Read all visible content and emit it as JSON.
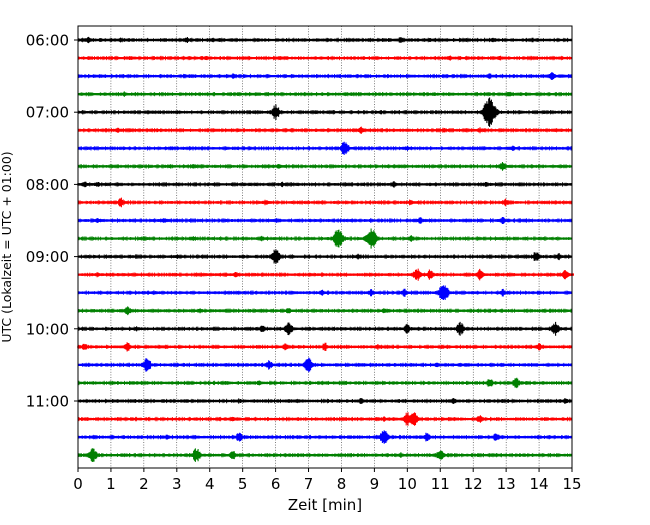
{
  "chart_data": {
    "type": "line",
    "title": "",
    "xlabel": "Zeit  [min]",
    "ylabel": "UTC (Lokalzeit = UTC + 01:00)",
    "xlim": [
      0,
      15
    ],
    "x_ticks": [
      0,
      1,
      2,
      3,
      4,
      5,
      6,
      7,
      8,
      9,
      10,
      11,
      12,
      13,
      14,
      15
    ],
    "x_grid": true,
    "trace_minutes": 15,
    "y_ticks": [
      "06:00",
      "07:00",
      "08:00",
      "09:00",
      "10:00",
      "11:00"
    ],
    "traces": [
      {
        "start": "06:00",
        "color": "#000000",
        "events": [
          [
            0.3,
            0.35
          ],
          [
            1.3,
            0.25
          ],
          [
            3.3,
            0.35
          ],
          [
            4.1,
            0.3
          ],
          [
            9.8,
            0.4
          ],
          [
            10.7,
            0.25
          ],
          [
            12.6,
            0.3
          ],
          [
            13.8,
            0.25
          ]
        ]
      },
      {
        "start": "06:15",
        "color": "#ff0000",
        "events": [
          [
            1.6,
            0.25
          ],
          [
            3.9,
            0.25
          ],
          [
            11.3,
            0.3
          ],
          [
            12.8,
            0.3
          ]
        ]
      },
      {
        "start": "06:30",
        "color": "#0000ff",
        "events": [
          [
            3.4,
            0.25
          ],
          [
            4.7,
            0.3
          ],
          [
            12.5,
            0.3
          ],
          [
            14.4,
            0.4
          ]
        ]
      },
      {
        "start": "06:45",
        "color": "#008000",
        "events": [
          [
            1.4,
            0.3
          ],
          [
            10.8,
            0.25
          ],
          [
            13.1,
            0.35
          ]
        ]
      },
      {
        "start": "07:00",
        "color": "#000000",
        "events": [
          [
            6.0,
            0.8
          ],
          [
            12.5,
            1.5
          ],
          [
            3.0,
            0.2
          ],
          [
            9.2,
            0.25
          ]
        ]
      },
      {
        "start": "07:15",
        "color": "#ff0000",
        "events": [
          [
            1.2,
            0.3
          ],
          [
            2.4,
            0.25
          ],
          [
            8.6,
            0.45
          ],
          [
            11.1,
            0.3
          ],
          [
            12.2,
            0.3
          ]
        ]
      },
      {
        "start": "07:30",
        "color": "#0000ff",
        "events": [
          [
            2.8,
            0.25
          ],
          [
            8.1,
            0.8
          ],
          [
            10.0,
            0.3
          ],
          [
            13.2,
            0.3
          ]
        ]
      },
      {
        "start": "07:45",
        "color": "#008000",
        "events": [
          [
            2.8,
            0.25
          ],
          [
            3.5,
            0.25
          ],
          [
            6.1,
            0.3
          ],
          [
            12.9,
            0.5
          ]
        ]
      },
      {
        "start": "08:00",
        "color": "#000000",
        "events": [
          [
            0.2,
            0.4
          ],
          [
            0.6,
            0.35
          ],
          [
            6.2,
            0.3
          ],
          [
            9.6,
            0.35
          ],
          [
            12.4,
            0.35
          ]
        ]
      },
      {
        "start": "08:15",
        "color": "#ff0000",
        "events": [
          [
            1.3,
            0.5
          ],
          [
            5.7,
            0.3
          ],
          [
            10.1,
            0.35
          ],
          [
            13.0,
            0.4
          ]
        ]
      },
      {
        "start": "08:30",
        "color": "#0000ff",
        "events": [
          [
            0.6,
            0.3
          ],
          [
            2.6,
            0.3
          ],
          [
            6.0,
            0.3
          ],
          [
            10.4,
            0.4
          ],
          [
            12.9,
            0.4
          ]
        ]
      },
      {
        "start": "08:45",
        "color": "#008000",
        "events": [
          [
            2.0,
            0.3
          ],
          [
            3.5,
            0.3
          ],
          [
            5.6,
            0.3
          ],
          [
            7.9,
            1.0
          ],
          [
            8.9,
            1.1
          ],
          [
            10.1,
            0.35
          ]
        ]
      },
      {
        "start": "09:00",
        "color": "#000000",
        "events": [
          [
            6.0,
            0.8
          ],
          [
            8.5,
            0.3
          ],
          [
            13.9,
            0.55
          ],
          [
            14.6,
            0.4
          ],
          [
            3.0,
            0.25
          ]
        ]
      },
      {
        "start": "09:15",
        "color": "#ff0000",
        "events": [
          [
            0.6,
            0.3
          ],
          [
            4.8,
            0.3
          ],
          [
            10.3,
            0.7
          ],
          [
            10.7,
            0.6
          ],
          [
            12.2,
            0.6
          ],
          [
            14.8,
            0.6
          ]
        ]
      },
      {
        "start": "09:30",
        "color": "#0000ff",
        "events": [
          [
            2.3,
            0.3
          ],
          [
            7.4,
            0.35
          ],
          [
            8.9,
            0.4
          ],
          [
            9.9,
            0.45
          ],
          [
            11.1,
            1.0
          ],
          [
            12.9,
            0.4
          ]
        ]
      },
      {
        "start": "09:45",
        "color": "#008000",
        "events": [
          [
            1.5,
            0.55
          ],
          [
            3.7,
            0.3
          ],
          [
            6.4,
            0.35
          ],
          [
            9.3,
            0.3
          ]
        ]
      },
      {
        "start": "10:00",
        "color": "#000000",
        "events": [
          [
            5.6,
            0.4
          ],
          [
            6.4,
            0.7
          ],
          [
            10.0,
            0.5
          ],
          [
            11.6,
            0.7
          ],
          [
            14.5,
            0.7
          ],
          [
            1.8,
            0.3
          ]
        ]
      },
      {
        "start": "10:15",
        "color": "#ff0000",
        "events": [
          [
            0.2,
            0.4
          ],
          [
            1.5,
            0.5
          ],
          [
            6.3,
            0.4
          ],
          [
            7.5,
            0.45
          ],
          [
            9.1,
            0.3
          ],
          [
            14.0,
            0.4
          ]
        ]
      },
      {
        "start": "10:30",
        "color": "#0000ff",
        "events": [
          [
            2.1,
            0.75
          ],
          [
            5.8,
            0.5
          ],
          [
            7.0,
            0.8
          ],
          [
            10.9,
            0.3
          ]
        ]
      },
      {
        "start": "10:45",
        "color": "#008000",
        "events": [
          [
            5.5,
            0.3
          ],
          [
            12.5,
            0.55
          ],
          [
            13.3,
            0.6
          ],
          [
            4.5,
            0.25
          ]
        ]
      },
      {
        "start": "11:00",
        "color": "#000000",
        "events": [
          [
            4.9,
            0.3
          ],
          [
            6.4,
            0.3
          ],
          [
            8.6,
            0.35
          ],
          [
            11.4,
            0.35
          ],
          [
            14.8,
            0.3
          ]
        ]
      },
      {
        "start": "11:15",
        "color": "#ff0000",
        "events": [
          [
            4.7,
            0.3
          ],
          [
            10.0,
            0.75
          ],
          [
            10.2,
            0.75
          ],
          [
            12.2,
            0.5
          ],
          [
            9.3,
            0.3
          ]
        ]
      },
      {
        "start": "11:30",
        "color": "#0000ff",
        "events": [
          [
            4.9,
            0.55
          ],
          [
            9.3,
            0.85
          ],
          [
            10.6,
            0.5
          ],
          [
            12.7,
            0.5
          ],
          [
            2.7,
            0.3
          ]
        ]
      },
      {
        "start": "11:45",
        "color": "#008000",
        "events": [
          [
            0.45,
            0.8
          ],
          [
            3.6,
            0.75
          ],
          [
            4.7,
            0.5
          ],
          [
            11.0,
            0.65
          ],
          [
            9.8,
            0.3
          ]
        ]
      }
    ]
  }
}
